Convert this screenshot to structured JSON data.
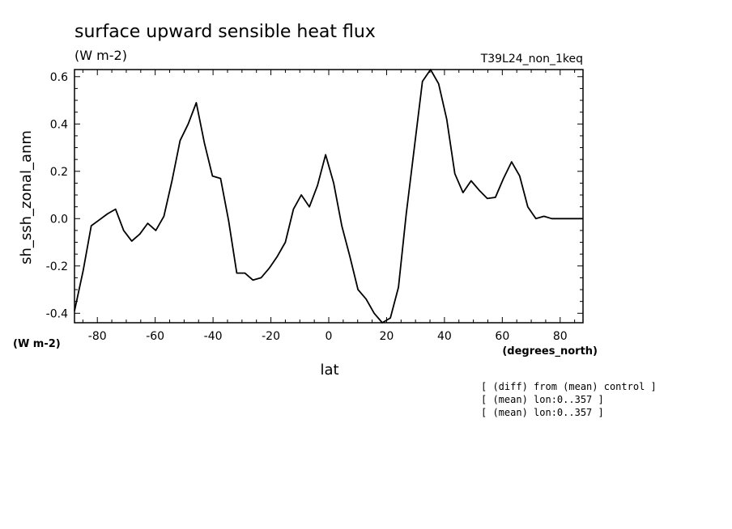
{
  "chart_data": {
    "type": "line",
    "title": "surface upward sensible heat flux",
    "subtitle": "(W m-2)",
    "run_label": "T39L24_non_1keq",
    "xlabel": "lat",
    "x_unit_label": "(degrees_north)",
    "ylabel": "sh_ssh_zonal_anm",
    "y_unit_label": "(W m-2)",
    "xlim": [
      -87.9,
      87.9
    ],
    "ylim": [
      -0.44,
      0.63
    ],
    "xticks": [
      -80,
      -60,
      -40,
      -20,
      0,
      20,
      40,
      60,
      80
    ],
    "xtick_labels": [
      "-80",
      "-60",
      "-40",
      "-20",
      "0",
      "20",
      "40",
      "60",
      "80"
    ],
    "yticks": [
      -0.4,
      -0.2,
      0.0,
      0.2,
      0.4,
      0.6
    ],
    "ytick_labels": [
      "-0.4",
      "-0.2",
      "0.0",
      "0.2",
      "0.4",
      "0.6"
    ],
    "grid": false,
    "series": [
      {
        "color": "#000000",
        "x": [
          -87.9,
          -84.9,
          -82.1,
          -79.3,
          -76.5,
          -73.7,
          -70.9,
          -68.1,
          -65.3,
          -62.6,
          -59.8,
          -57.0,
          -54.2,
          -51.4,
          -48.6,
          -45.8,
          -43.0,
          -40.2,
          -37.4,
          -34.6,
          -31.8,
          -29.0,
          -26.2,
          -23.4,
          -20.6,
          -17.8,
          -15.0,
          -12.2,
          -9.5,
          -6.7,
          -3.9,
          -1.1,
          1.7,
          4.5,
          7.3,
          10.1,
          12.9,
          15.7,
          18.5,
          21.3,
          24.1,
          26.8,
          29.6,
          32.4,
          35.2,
          38.0,
          40.8,
          43.6,
          46.4,
          49.2,
          52.0,
          54.8,
          57.6,
          60.4,
          63.2,
          66.0,
          68.8,
          71.6,
          74.4,
          77.1,
          79.9,
          82.7,
          85.5,
          87.9
        ],
        "y": [
          -0.39,
          -0.22,
          -0.03,
          -0.005,
          0.02,
          0.04,
          -0.05,
          -0.095,
          -0.065,
          -0.02,
          -0.05,
          0.01,
          0.16,
          0.33,
          0.4,
          0.49,
          0.32,
          0.18,
          0.17,
          -0.01,
          -0.23,
          -0.23,
          -0.26,
          -0.25,
          -0.21,
          -0.16,
          -0.1,
          0.04,
          0.1,
          0.05,
          0.14,
          0.27,
          0.15,
          -0.03,
          -0.16,
          -0.3,
          -0.34,
          -0.4,
          -0.44,
          -0.42,
          -0.29,
          0.02,
          0.3,
          0.58,
          0.63,
          0.57,
          0.42,
          0.19,
          0.11,
          0.16,
          0.12,
          0.085,
          0.09,
          0.17,
          0.24,
          0.18,
          0.05,
          0.0,
          0.01,
          0.0,
          0.0,
          0.0,
          0.0,
          0.0
        ]
      }
    ]
  },
  "notes": [
    "[ (diff) from (mean) control ]",
    "[ (mean) lon:0..357 ]",
    "[ (mean) lon:0..357 ]"
  ]
}
